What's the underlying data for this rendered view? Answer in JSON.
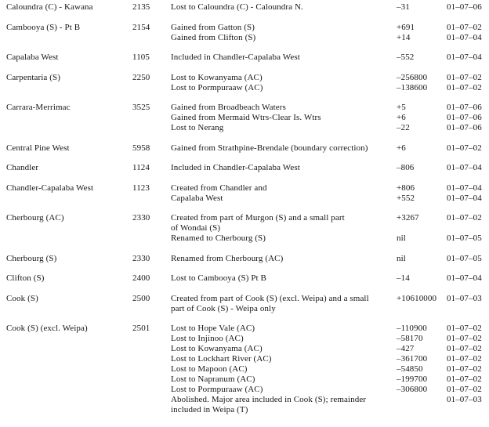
{
  "colors": {
    "text": "#151515",
    "background": "#ffffff"
  },
  "table": {
    "groups": [
      {
        "name": "Caloundra (C) - Kawana",
        "code": "2135",
        "entries": [
          {
            "desc": "Lost to Caloundra (C) - Caloundra N.",
            "value": "–31",
            "date": "01–07–06"
          }
        ]
      },
      {
        "name": "Cambooya (S) - Pt B",
        "code": "2154",
        "entries": [
          {
            "desc": "Gained from Gatton (S)",
            "value": "+691",
            "date": "01–07–02"
          },
          {
            "desc": "Gained from Clifton (S)",
            "value": "+14",
            "date": "01–07–04"
          }
        ]
      },
      {
        "name": "Capalaba West",
        "code": "1105",
        "entries": [
          {
            "desc": "Included in Chandler-Capalaba West",
            "value": "–552",
            "date": "01–07–04"
          }
        ]
      },
      {
        "name": "Carpentaria (S)",
        "code": "2250",
        "entries": [
          {
            "desc": "Lost to Kowanyama (AC)",
            "value": "–256800",
            "date": "01–07–02"
          },
          {
            "desc": "Lost to Pormpuraaw (AC)",
            "value": "–138600",
            "date": "01–07–02"
          }
        ]
      },
      {
        "name": "Carrara-Merrimac",
        "code": "3525",
        "entries": [
          {
            "desc": "Gained from Broadbeach Waters",
            "value": "+5",
            "date": "01–07–06"
          },
          {
            "desc": "Gained from Mermaid Wtrs-Clear Is. Wtrs",
            "value": "+6",
            "date": "01–07–06"
          },
          {
            "desc": "Lost to Nerang",
            "value": "–22",
            "date": "01–07–06"
          }
        ]
      },
      {
        "name": "Central Pine West",
        "code": "5958",
        "entries": [
          {
            "desc": "Gained from Strathpine-Brendale (boundary correction)",
            "value": "+6",
            "date": "01–07–02"
          }
        ]
      },
      {
        "name": "Chandler",
        "code": "1124",
        "entries": [
          {
            "desc": "Included in Chandler-Capalaba West",
            "value": "–806",
            "date": "01–07–04"
          }
        ]
      },
      {
        "name": "Chandler-Capalaba West",
        "code": "1123",
        "entries": [
          {
            "desc": "Created from Chandler and",
            "value": "+806",
            "date": "01–07–04"
          },
          {
            "desc": "Capalaba West",
            "value": "+552",
            "date": "01–07–04"
          }
        ]
      },
      {
        "name": "Cherbourg (AC)",
        "code": "2330",
        "entries": [
          {
            "desc": "Created from part of Murgon (S) and a small part",
            "value": "+3267",
            "date": "01–07–02"
          },
          {
            "desc": "of Wondai (S)",
            "value": "",
            "date": ""
          },
          {
            "desc": "Renamed to Cherbourg (S)",
            "value": "nil",
            "date": "01–07–05"
          }
        ]
      },
      {
        "name": "Cherbourg (S)",
        "code": "2330",
        "entries": [
          {
            "desc": "Renamed from Cherbourg (AC)",
            "value": "nil",
            "date": "01–07–05"
          }
        ]
      },
      {
        "name": "Clifton (S)",
        "code": "2400",
        "entries": [
          {
            "desc": "Lost to Cambooya (S) Pt B",
            "value": "–14",
            "date": "01–07–04"
          }
        ]
      },
      {
        "name": "Cook (S)",
        "code": "2500",
        "entries": [
          {
            "desc": "Created from part of Cook (S) (excl. Weipa) and a small",
            "value": "+10610000",
            "date": "01–07–03"
          },
          {
            "desc": "part of Cook (S) - Weipa only",
            "value": "",
            "date": ""
          }
        ]
      },
      {
        "name": "Cook (S) (excl. Weipa)",
        "code": "2501",
        "entries": [
          {
            "desc": "Lost to Hope Vale (AC)",
            "value": "–110900",
            "date": "01–07–02"
          },
          {
            "desc": "Lost to Injinoo (AC)",
            "value": "–58170",
            "date": "01–07–02"
          },
          {
            "desc": "Lost to Kowanyama (AC)",
            "value": "–427",
            "date": "01–07–02"
          },
          {
            "desc": "Lost to Lockhart River (AC)",
            "value": "–361700",
            "date": "01–07–02"
          },
          {
            "desc": "Lost to Mapoon (AC)",
            "value": "–54850",
            "date": "01–07–02"
          },
          {
            "desc": "Lost to Napranum (AC)",
            "value": "–199700",
            "date": "01–07–02"
          },
          {
            "desc": "Lost to Pormpuraaw (AC)",
            "value": "–306800",
            "date": "01–07–02"
          },
          {
            "desc": "Abolished. Major area included in Cook (S); remainder",
            "value": "",
            "date": "01–07–03"
          },
          {
            "desc": "included in Weipa (T)",
            "value": "",
            "date": ""
          }
        ]
      }
    ]
  }
}
